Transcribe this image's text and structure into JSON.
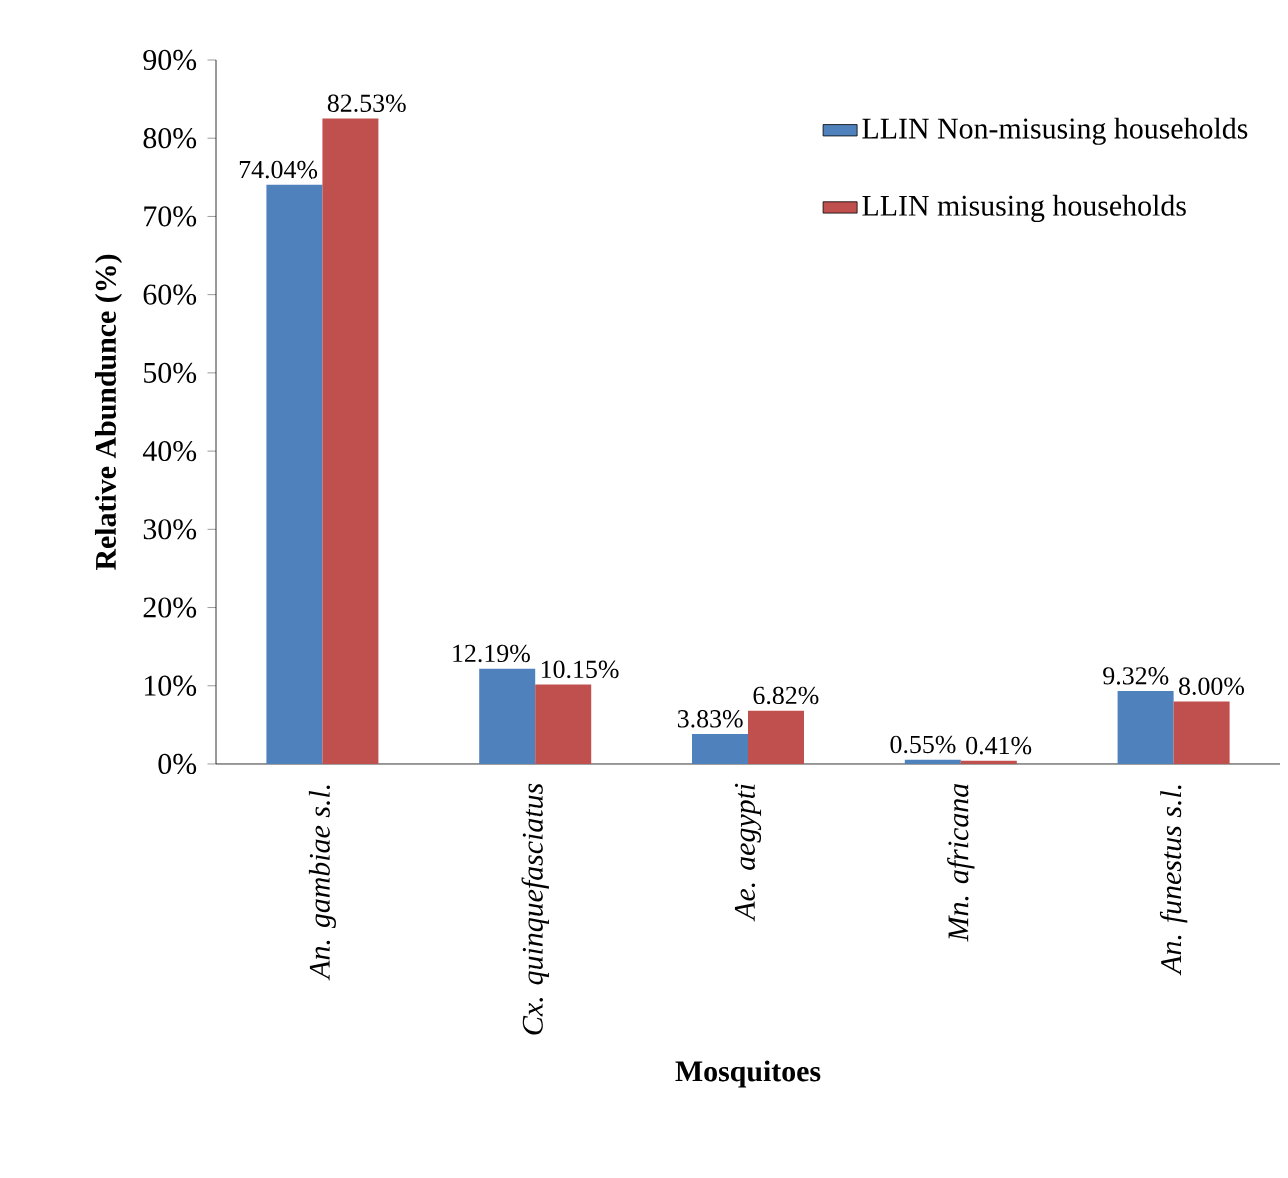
{
  "chart_data": {
    "type": "bar",
    "xlabel": "Mosquitoes",
    "ylabel": "Relative Abundunce (%)",
    "categories": [
      "An. gambiae s.l.",
      "Cx. quinquefasciatus",
      "Ae. aegypti",
      "Mn. africana",
      "An. funestus s.l."
    ],
    "series": [
      {
        "name": "LLIN Non-misusing households",
        "color": "#4f81bd",
        "values": [
          74.04,
          12.19,
          3.83,
          0.55,
          9.32
        ],
        "value_labels": [
          "74.04%",
          "12.19%",
          "3.83%",
          "0.55%",
          "9.32%"
        ]
      },
      {
        "name": "LLIN misusing households",
        "color": "#c0504d",
        "values": [
          82.53,
          10.15,
          6.82,
          0.41,
          8.0
        ],
        "value_labels": [
          "82.53%",
          "10.15%",
          "6.82%",
          "0.41%",
          "8.00%"
        ]
      }
    ],
    "ylim": [
      0,
      90
    ],
    "yticks": [
      {
        "value": 0,
        "label": "0%"
      },
      {
        "value": 10,
        "label": "10%"
      },
      {
        "value": 20,
        "label": "20%"
      },
      {
        "value": 30,
        "label": "30%"
      },
      {
        "value": 40,
        "label": "40%"
      },
      {
        "value": 50,
        "label": "50%"
      },
      {
        "value": 60,
        "label": "60%"
      },
      {
        "value": 70,
        "label": "70%"
      },
      {
        "value": 80,
        "label": "80%"
      },
      {
        "value": 90,
        "label": "90%"
      }
    ],
    "grid": false,
    "legend": "top right"
  }
}
